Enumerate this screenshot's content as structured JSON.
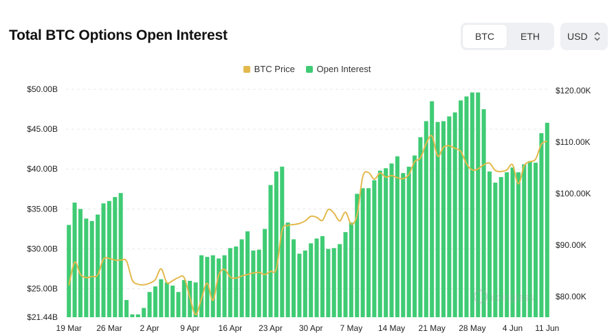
{
  "header": {
    "title": "Total BTC Options Open Interest",
    "tabs": [
      {
        "label": "BTC",
        "active": true
      },
      {
        "label": "ETH",
        "active": false
      }
    ],
    "currency": {
      "label": "USD",
      "icon": "chevron-updown-icon"
    }
  },
  "legend": [
    {
      "label": "BTC Price",
      "color": "#e3b94c"
    },
    {
      "label": "Open Interest",
      "color": "#3fcb74"
    }
  ],
  "watermark": "coinglass",
  "chart_data": {
    "type": "bar",
    "title": "Total BTC Options Open Interest",
    "x_tick_labels": [
      "19 Mar",
      "26 Mar",
      "2 Apr",
      "9 Apr",
      "16 Apr",
      "23 Apr",
      "30 Apr",
      "7 May",
      "14 May",
      "21 May",
      "28 May",
      "4 Jun",
      "11 Jun"
    ],
    "y_left_ticks": [
      "$50.00B",
      "$45.00B",
      "$40.00B",
      "$35.00B",
      "$30.00B",
      "$25.00B",
      "$21.44B"
    ],
    "y_right_ticks": [
      "$120.00K",
      "$110.00K",
      "$100.00K",
      "$90.00K",
      "$80.00K"
    ],
    "y_left_range": [
      21.44,
      50.0
    ],
    "y_right_range": [
      76.5,
      120.0
    ],
    "series": [
      {
        "name": "Open Interest",
        "axis": "left",
        "unit": "B USD",
        "color": "#3fcb74",
        "values": [
          33.0,
          35.8,
          35.0,
          33.8,
          33.5,
          34.3,
          35.7,
          36.0,
          36.5,
          37.0,
          23.6,
          21.8,
          21.8,
          22.6,
          24.6,
          25.3,
          26.2,
          25.8,
          25.4,
          24.6,
          26.1,
          26.0,
          25.8,
          29.2,
          29.0,
          29.2,
          28.8,
          29.2,
          30.1,
          30.3,
          31.2,
          32.2,
          29.8,
          29.9,
          32.5,
          38.0,
          39.7,
          40.3,
          33.3,
          31.2,
          29.4,
          29.8,
          30.7,
          31.3,
          31.6,
          30.0,
          30.1,
          30.6,
          32.1,
          33.3,
          36.9,
          37.6,
          37.6,
          38.6,
          39.8,
          40.1,
          40.7,
          41.6,
          39.5,
          40.3,
          41.7,
          44.0,
          46.0,
          48.5,
          45.9,
          46.0,
          46.6,
          47.1,
          48.6,
          49.1,
          49.6,
          49.6,
          47.5,
          39.7,
          38.3,
          39.0,
          39.6,
          40.2,
          39.6,
          40.6,
          41.0,
          40.8,
          44.5,
          45.8
        ]
      },
      {
        "name": "BTC Price",
        "axis": "right",
        "unit": "K USD",
        "color": "#e3b94c",
        "values": [
          82.2,
          86.7,
          84.3,
          83.7,
          83.9,
          84.2,
          87.3,
          87.4,
          87.1,
          87.1,
          86.9,
          83.2,
          82.4,
          82.3,
          82.6,
          83.3,
          85.4,
          82.7,
          83.1,
          83.7,
          83.7,
          79.8,
          76.5,
          79.6,
          82.6,
          79.3,
          84.2,
          85.3,
          83.8,
          83.6,
          84.0,
          84.3,
          84.6,
          84.7,
          84.3,
          84.9,
          85.4,
          92.9,
          93.8,
          94.0,
          94.2,
          94.7,
          95.6,
          95.4,
          94.8,
          96.9,
          96.2,
          94.7,
          96.4,
          94.1,
          95.8,
          103.3,
          104.1,
          102.8,
          104.0,
          103.2,
          103.5,
          103.1,
          102.9,
          103.7,
          106.2,
          106.9,
          109.7,
          111.2,
          107.3,
          109.0,
          109.3,
          108.8,
          108.2,
          105.8,
          104.6,
          104.8,
          105.6,
          105.9,
          104.5,
          104.3,
          104.6,
          105.6,
          101.9,
          105.4,
          106.2,
          106.7,
          109.6,
          110.2
        ]
      }
    ]
  }
}
